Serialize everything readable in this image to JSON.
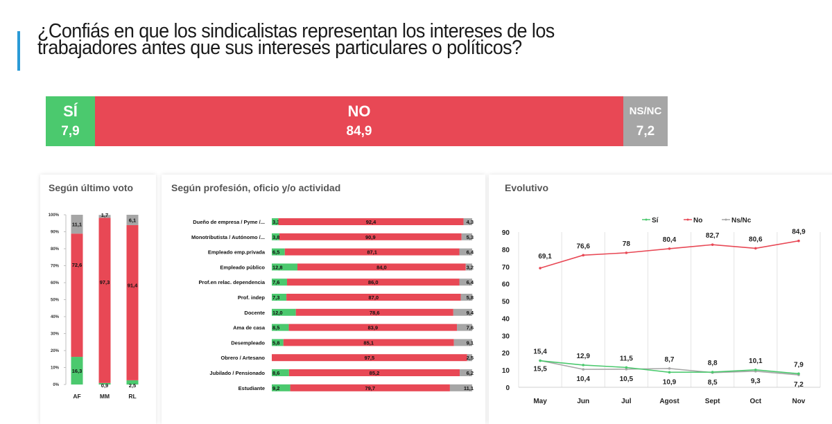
{
  "title": {
    "line1": "¿Confiás en que los sindicalistas representan los intereses de los",
    "line2": "trabajadores antes que sus intereses particulares o políticos?"
  },
  "colors": {
    "si": "#4bc96e",
    "no": "#e84855",
    "ns": "#a6a6a6",
    "accent": "#2a9ad6"
  },
  "topbar": {
    "segments": [
      {
        "label": "SÍ",
        "value": 7.9,
        "display": "7,9",
        "color": "#4bc96e"
      },
      {
        "label": "NO",
        "value": 84.9,
        "display": "84,9",
        "color": "#e84855"
      },
      {
        "label": "NS/NC",
        "value": 7.2,
        "display": "7,2",
        "color": "#a6a6a6"
      }
    ]
  },
  "panels": {
    "voto_title": "Según último voto",
    "profesion_title": "Según profesión, oficio y/o actividad",
    "evolutivo_title": "Evolutivo"
  },
  "chart_data": [
    {
      "type": "bar",
      "stacked": true,
      "title": "Según último voto",
      "categories": [
        "AF",
        "MM",
        "RL"
      ],
      "yticks": [
        "0%",
        "10%",
        "20%",
        "30%",
        "40%",
        "50%",
        "60%",
        "70%",
        "80%",
        "90%",
        "100%"
      ],
      "ylim": [
        0,
        100
      ],
      "series": [
        {
          "name": "Sí",
          "color": "#4bc96e",
          "values": [
            16.3,
            0.9,
            2.5
          ],
          "labels": [
            "16,3",
            "0,9",
            "2,5"
          ]
        },
        {
          "name": "No",
          "color": "#e84855",
          "values": [
            72.6,
            97.3,
            91.4
          ],
          "labels": [
            "72,6",
            "97,3",
            "91,4"
          ]
        },
        {
          "name": "Ns/Nc",
          "color": "#a6a6a6",
          "values": [
            11.1,
            1.7,
            6.1
          ],
          "labels": [
            "11,1",
            "1,7",
            "6,1"
          ]
        }
      ]
    },
    {
      "type": "bar",
      "orientation": "horizontal",
      "stacked": true,
      "title": "Según profesión, oficio y/o actividad",
      "categories": [
        "Dueño de empresa / Pyme /...",
        "Monotributista / Autónomo /...",
        "Empleado emp.privada",
        "Empleado público",
        "Prof.en relac. dependencia",
        "Prof. indep",
        "Docente",
        "Ama de casa",
        "Desempleado",
        "Obrero / Artesano",
        "Jubilado / Pensionado",
        "Estudiante"
      ],
      "series": [
        {
          "name": "Sí",
          "color": "#4bc96e",
          "values": [
            3.3,
            3.8,
            6.5,
            12.8,
            7.6,
            7.3,
            12.0,
            8.5,
            5.8,
            0,
            8.6,
            9.2
          ],
          "labels": [
            "3,3",
            "3,8",
            "6,5",
            "12,8",
            "7,6",
            "7,3",
            "12,0",
            "8,5",
            "5,8",
            "",
            "8,6",
            "9,2"
          ]
        },
        {
          "name": "No",
          "color": "#e84855",
          "values": [
            92.4,
            90.9,
            87.1,
            84.0,
            86.0,
            87.0,
            78.6,
            83.9,
            85.1,
            97.5,
            85.2,
            79.7
          ],
          "labels": [
            "92,4",
            "90,9",
            "87,1",
            "84,0",
            "86,0",
            "87,0",
            "78,6",
            "83,9",
            "85,1",
            "97,5",
            "85,2",
            "79,7"
          ]
        },
        {
          "name": "Ns/Nc",
          "color": "#a6a6a6",
          "values": [
            4.3,
            5.3,
            6.4,
            3.2,
            6.4,
            5.8,
            9.4,
            7.6,
            9.1,
            2.5,
            6.2,
            11.1
          ],
          "labels": [
            "4,3",
            "5,3",
            "6,4",
            "3,2",
            "6,4",
            "5,8",
            "9,4",
            "7,6",
            "9,1",
            "2,5",
            "6,2",
            "11,1"
          ]
        }
      ]
    },
    {
      "type": "line",
      "title": "Evolutivo",
      "categories": [
        "May",
        "Jun",
        "Jul",
        "Agost",
        "Sept",
        "Oct",
        "Nov"
      ],
      "yticks": [
        "0",
        "10",
        "20",
        "30",
        "40",
        "50",
        "60",
        "70",
        "80",
        "90"
      ],
      "ylim": [
        0,
        90
      ],
      "grid": true,
      "legend": "top",
      "series": [
        {
          "name": "Sí",
          "color": "#4bc96e",
          "values": [
            15.4,
            12.9,
            11.5,
            8.7,
            8.8,
            10.1,
            7.9
          ],
          "labels": [
            "15,4",
            "12,9",
            "11,5",
            "8,7",
            "8,8",
            "10,1",
            "7,9"
          ]
        },
        {
          "name": "No",
          "color": "#e84855",
          "values": [
            69.1,
            76.6,
            78,
            80.4,
            82.7,
            80.6,
            84.9
          ],
          "labels": [
            "69,1",
            "76,6",
            "78",
            "80,4",
            "82,7",
            "80,6",
            "84,9"
          ]
        },
        {
          "name": "Ns/Nc",
          "color": "#a6a6a6",
          "values": [
            15.5,
            10.4,
            10.5,
            10.9,
            8.5,
            9.3,
            7.2
          ],
          "labels": [
            "15,5",
            "10,4",
            "10,5",
            "10,9",
            "8,5",
            "9,3",
            "7,2"
          ]
        }
      ]
    }
  ]
}
